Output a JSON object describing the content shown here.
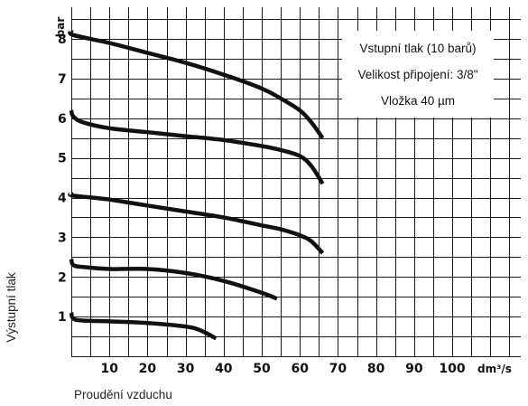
{
  "chart_data": {
    "type": "line",
    "xlabel": "Proudění vzduchu",
    "ylabel": "Výstupní tlak",
    "x_unit": "dm³/s",
    "y_unit": "bar",
    "xlim": [
      0,
      118
    ],
    "ylim": [
      0,
      8.8
    ],
    "x_ticks": [
      10,
      20,
      30,
      40,
      50,
      60,
      70,
      80,
      90,
      100
    ],
    "y_ticks": [
      1,
      2,
      3,
      4,
      5,
      6,
      7,
      8
    ],
    "grid": true,
    "annotations": [
      "Vstupní tlak (10 barů)",
      "Velikost připojení: 3/8\"",
      "Vložka 40 µm"
    ],
    "series": [
      {
        "x": [
          0,
          0.5,
          10,
          20,
          30,
          40,
          50,
          55,
          60,
          63,
          66
        ],
        "y": [
          8.2,
          8.1,
          7.9,
          7.65,
          7.4,
          7.1,
          6.75,
          6.5,
          6.2,
          5.9,
          5.5
        ]
      },
      {
        "x": [
          0,
          0.5,
          3,
          10,
          20,
          30,
          40,
          50,
          55,
          60,
          63,
          66
        ],
        "y": [
          6.2,
          6.05,
          5.9,
          5.75,
          5.65,
          5.55,
          5.45,
          5.3,
          5.2,
          5.05,
          4.8,
          4.35
        ]
      },
      {
        "x": [
          0,
          0.5,
          10,
          20,
          30,
          40,
          50,
          55,
          60,
          63,
          66
        ],
        "y": [
          4.1,
          4.05,
          3.95,
          3.8,
          3.65,
          3.5,
          3.3,
          3.2,
          3.05,
          2.9,
          2.6
        ]
      },
      {
        "x": [
          0,
          0.5,
          3,
          10,
          20,
          30,
          40,
          50,
          54
        ],
        "y": [
          2.45,
          2.3,
          2.25,
          2.2,
          2.2,
          2.1,
          1.9,
          1.6,
          1.45
        ]
      },
      {
        "x": [
          0,
          0.5,
          3,
          10,
          20,
          30,
          34,
          38
        ],
        "y": [
          1.1,
          0.95,
          0.9,
          0.88,
          0.84,
          0.75,
          0.65,
          0.45
        ]
      }
    ]
  }
}
